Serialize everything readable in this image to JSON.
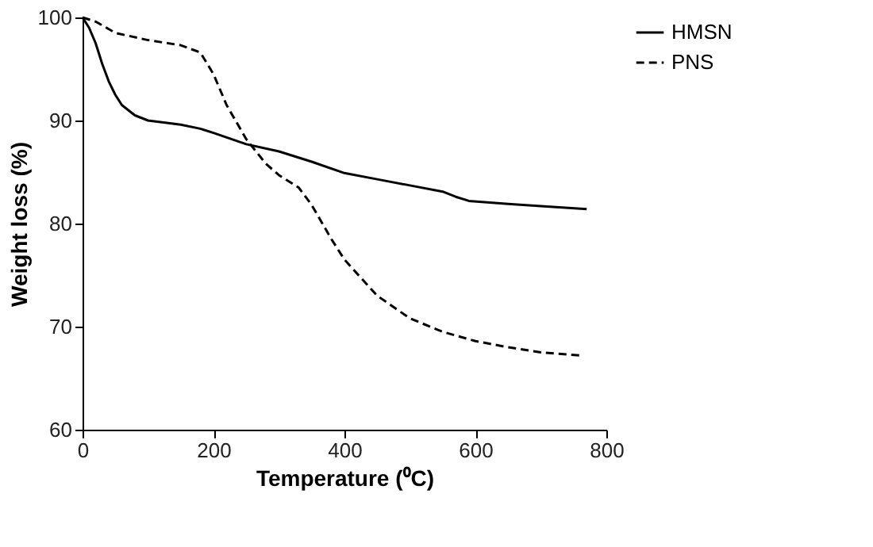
{
  "chart_data": {
    "type": "line",
    "xlabel": "Temperature (⁰C)",
    "ylabel": "Weight loss (%)",
    "xlim": [
      0,
      800
    ],
    "xticks": [
      0,
      200,
      400,
      600,
      800
    ],
    "ylim": [
      60,
      100
    ],
    "yticks": [
      60,
      70,
      80,
      90,
      100
    ],
    "grid": false,
    "legend": "right",
    "marker": "none",
    "series": [
      {
        "name": "HMSN",
        "color": "#000000",
        "line_style": "solid",
        "x": [
          0,
          10,
          20,
          30,
          40,
          50,
          60,
          80,
          100,
          150,
          180,
          200,
          250,
          300,
          350,
          400,
          450,
          500,
          550,
          570,
          590,
          650,
          700,
          770
        ],
        "values": [
          100,
          99,
          97.5,
          95.5,
          93.8,
          92.5,
          91.5,
          90.5,
          90,
          89.6,
          89.2,
          88.8,
          87.7,
          87,
          86,
          84.9,
          84.3,
          83.7,
          83.1,
          82.6,
          82.2,
          81.9,
          81.7,
          81.4
        ]
      },
      {
        "name": "PNS",
        "color": "#000000",
        "line_style": "dashed",
        "x": [
          0,
          20,
          50,
          100,
          150,
          180,
          200,
          220,
          250,
          280,
          300,
          330,
          350,
          380,
          400,
          450,
          500,
          550,
          600,
          650,
          700,
          760
        ],
        "values": [
          100,
          99.6,
          98.5,
          97.8,
          97.3,
          96.6,
          94.5,
          91.5,
          88.2,
          85.8,
          84.7,
          83.5,
          81.8,
          78.5,
          76.5,
          73,
          70.8,
          69.5,
          68.6,
          68,
          67.5,
          67.2
        ]
      }
    ]
  }
}
